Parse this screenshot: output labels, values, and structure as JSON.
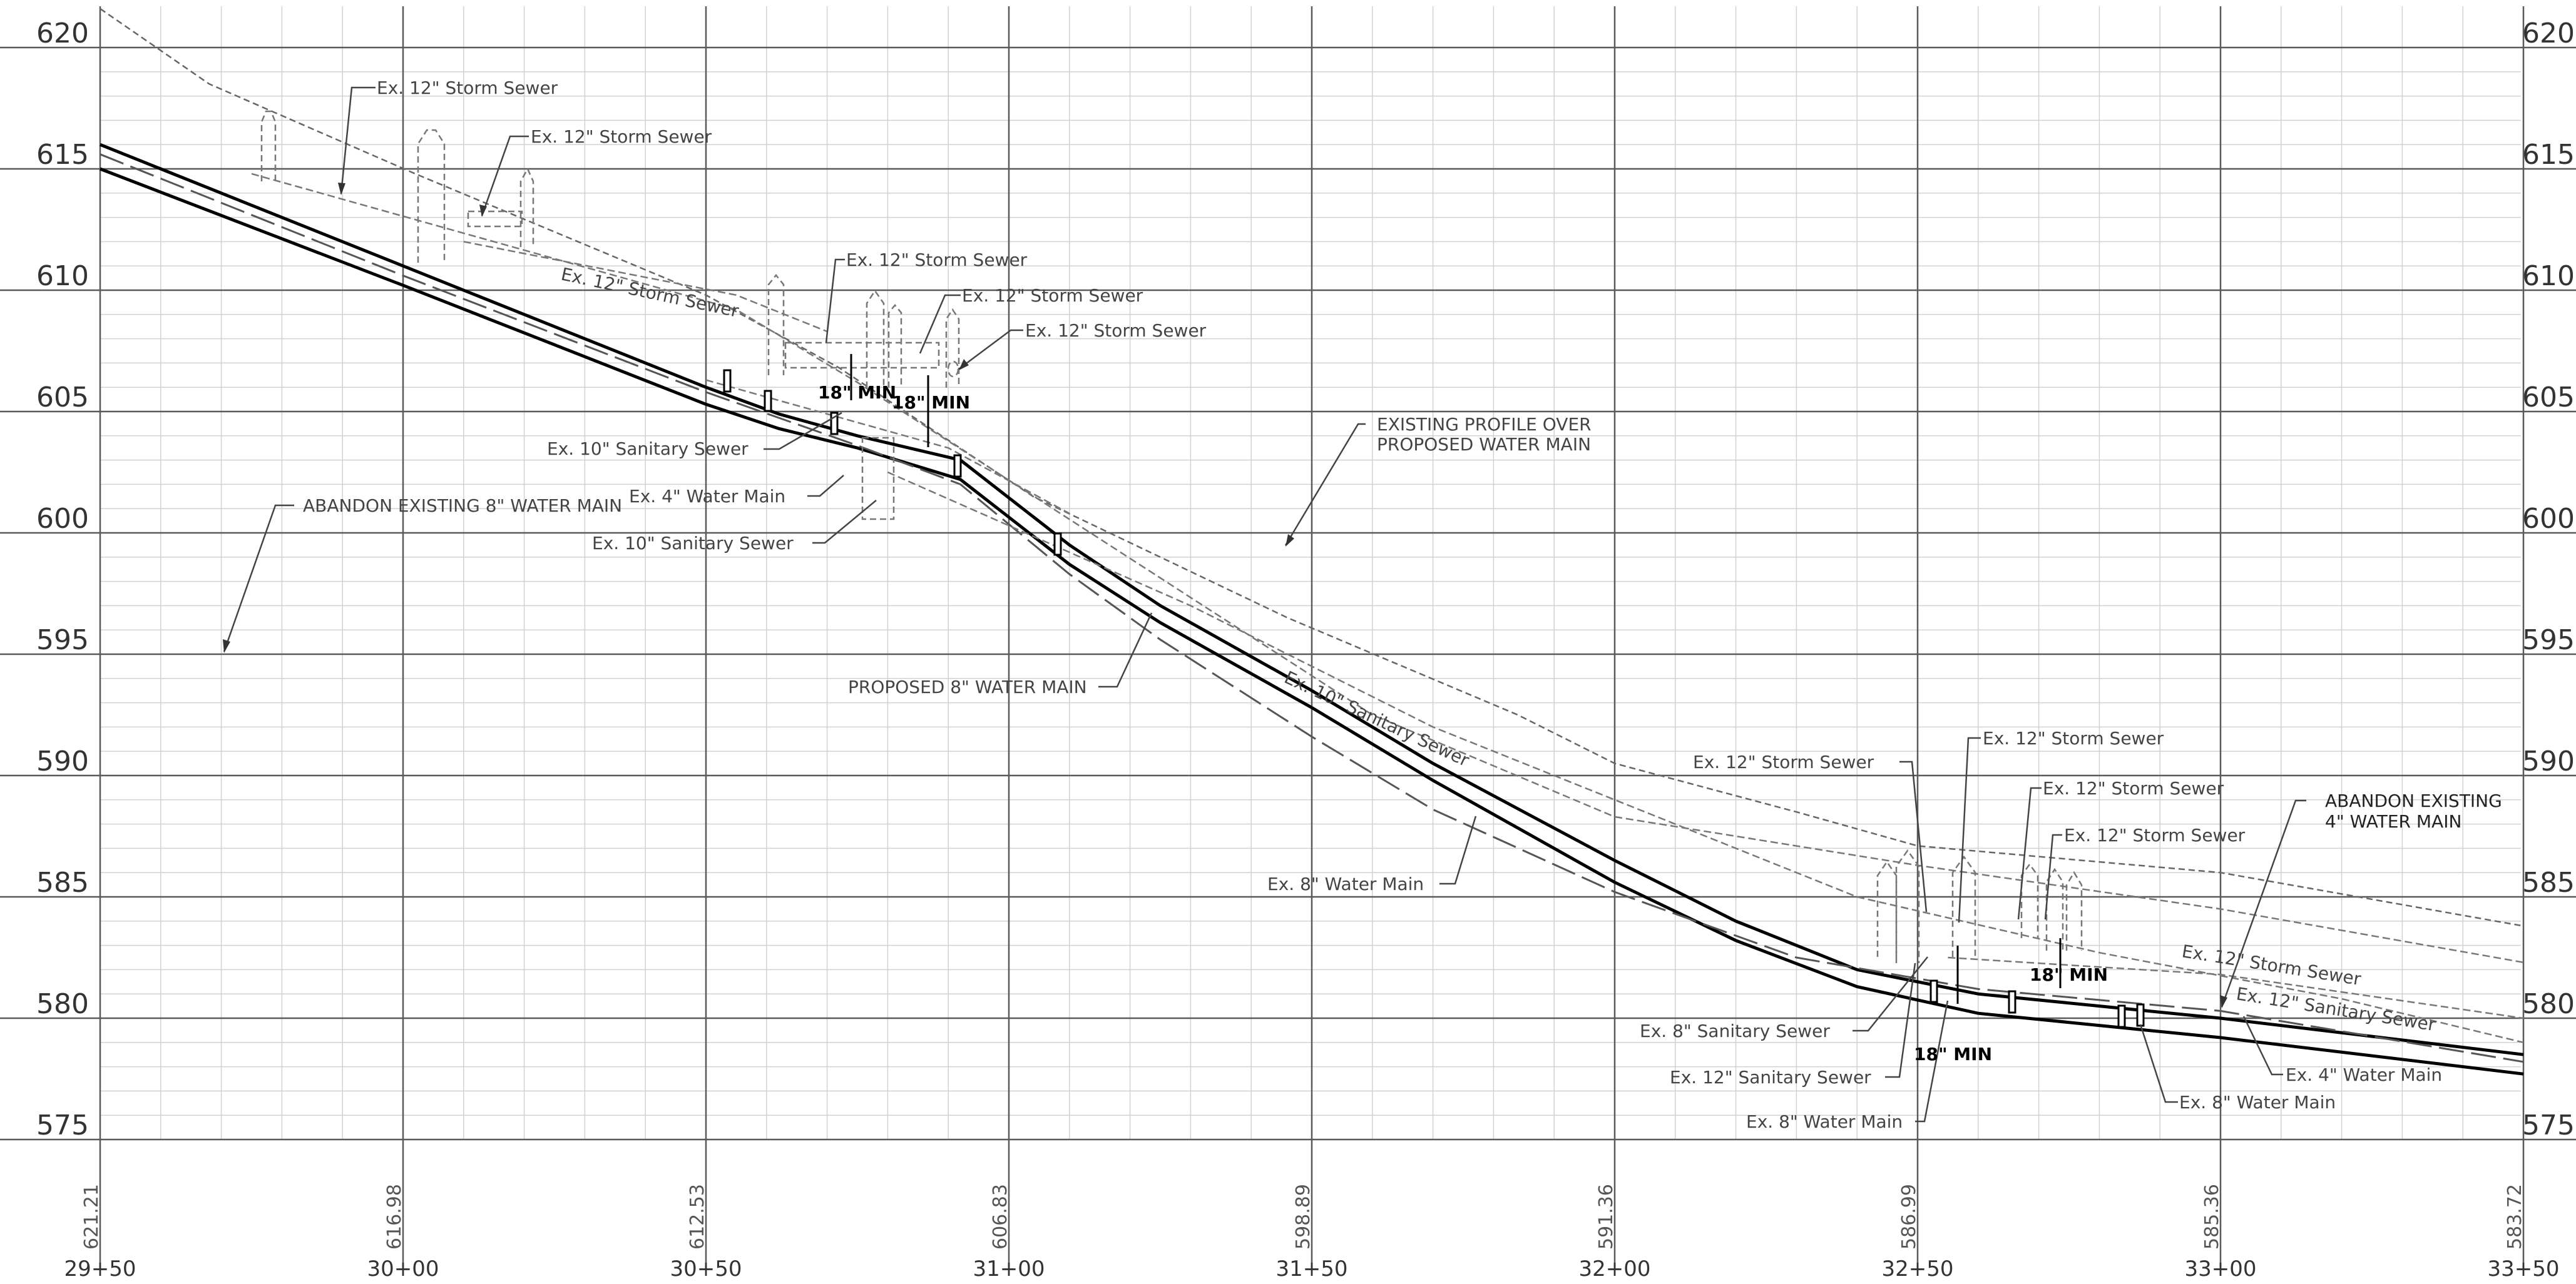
{
  "profile": {
    "elevations": [
      "620",
      "615",
      "610",
      "605",
      "600",
      "595",
      "590",
      "585",
      "580",
      "575"
    ],
    "stations": [
      "29+50",
      "30+00",
      "30+50",
      "31+00",
      "31+50",
      "32+00",
      "32+50",
      "33+00",
      "33+50"
    ],
    "grade_values": [
      "621.21",
      "616.98",
      "612.53",
      "606.83",
      "598.89",
      "591.36",
      "586.99",
      "585.36",
      "583.72"
    ]
  },
  "lines": {
    "existing_ground": [
      [
        29.5,
        621.6
      ],
      [
        29.68,
        618.5
      ],
      [
        30.02,
        614.8
      ],
      [
        30.5,
        609.8
      ],
      [
        30.72,
        606.8
      ],
      [
        31.04,
        601.5
      ],
      [
        31.46,
        596.5
      ],
      [
        31.84,
        592.5
      ],
      [
        32.0,
        590.5
      ],
      [
        32.3,
        588.5
      ],
      [
        32.5,
        587.1
      ],
      [
        33.0,
        586.0
      ],
      [
        33.5,
        583.8
      ]
    ],
    "proposed_main_top": [
      [
        29.5,
        616.0
      ],
      [
        30.0,
        611.0
      ],
      [
        30.5,
        606.0
      ],
      [
        30.62,
        604.9
      ],
      [
        30.75,
        604.0
      ],
      [
        30.92,
        603.0
      ],
      [
        31.1,
        599.5
      ],
      [
        31.25,
        597.0
      ],
      [
        31.5,
        593.5
      ],
      [
        31.7,
        590.5
      ],
      [
        32.0,
        586.5
      ],
      [
        32.2,
        584.0
      ],
      [
        32.4,
        582.0
      ],
      [
        32.6,
        581.0
      ],
      [
        33.0,
        580.0
      ],
      [
        33.5,
        578.5
      ]
    ],
    "proposed_main_bottom": [
      [
        29.5,
        615.0
      ],
      [
        30.0,
        610.2
      ],
      [
        30.5,
        605.3
      ],
      [
        30.62,
        604.3
      ],
      [
        30.75,
        603.5
      ],
      [
        30.92,
        602.2
      ],
      [
        31.1,
        598.7
      ],
      [
        31.25,
        596.3
      ],
      [
        31.5,
        592.8
      ],
      [
        31.7,
        589.8
      ],
      [
        32.0,
        585.6
      ],
      [
        32.2,
        583.2
      ],
      [
        32.4,
        581.3
      ],
      [
        32.6,
        580.2
      ],
      [
        33.0,
        579.2
      ],
      [
        33.5,
        577.7
      ]
    ],
    "existing_8_water_main": [
      [
        29.5,
        615.6
      ],
      [
        30.0,
        610.6
      ],
      [
        30.5,
        605.8
      ],
      [
        30.75,
        603.6
      ],
      [
        30.92,
        602.0
      ],
      [
        31.1,
        598.3
      ],
      [
        31.25,
        595.6
      ],
      [
        31.5,
        591.6
      ],
      [
        31.7,
        588.6
      ],
      [
        32.0,
        585.2
      ],
      [
        32.3,
        582.5
      ],
      [
        32.6,
        581.2
      ],
      [
        33.0,
        580.3
      ],
      [
        33.5,
        578.2
      ]
    ],
    "storm_sewer_a": [
      [
        29.75,
        614.8
      ],
      [
        30.55,
        609.2
      ],
      [
        30.75,
        606.2
      ],
      [
        31.6,
        592.5
      ],
      [
        32.0,
        588.3
      ],
      [
        32.5,
        586.3
      ],
      [
        33.0,
        584.5
      ],
      [
        33.5,
        582.3
      ]
    ],
    "storm_sewer_b": [
      [
        30.1,
        612.0
      ],
      [
        30.55,
        609.8
      ],
      [
        30.7,
        608.3
      ]
    ],
    "sanitary_sewer": [
      [
        30.8,
        602.5
      ],
      [
        31.3,
        597.0
      ],
      [
        31.7,
        592.0
      ],
      [
        32.4,
        585.0
      ],
      [
        32.8,
        582.7
      ],
      [
        33.2,
        580.8
      ],
      [
        33.5,
        579.0
      ]
    ],
    "four_inch_main": [
      [
        30.5,
        606.3
      ],
      [
        30.9,
        603.5
      ],
      [
        31.1,
        600.8
      ]
    ],
    "storm_sewer_c": [
      [
        32.55,
        582.5
      ],
      [
        33.0,
        581.8
      ],
      [
        33.5,
        580.0
      ]
    ]
  },
  "labels": {
    "storm_1": "Ex. 12\" Storm Sewer",
    "storm_2": "Ex. 12\" Storm Sewer",
    "storm_3": "Ex. 12\" Storm Sewer",
    "storm_4": "Ex. 12\" Storm Sewer",
    "storm_5": "Ex. 12\" Storm Sewer",
    "storm_diag": "Ex. 12\" Storm Sewer",
    "san_10_a": "Ex. 10\" Sanitary Sewer",
    "wm_4_a": "Ex. 4\" Water Main",
    "san_10_b": "Ex. 10\" Sanitary Sewer",
    "abandon_8": "ABANDON EXISTING 8\" WATER MAIN",
    "min_1": "18\" MIN",
    "min_2": "18\" MIN",
    "existing_profile_1": "EXISTING PROFILE OVER",
    "existing_profile_2": "PROPOSED WATER MAIN",
    "proposed_main": "PROPOSED 8\" WATER MAIN",
    "san_10_diag": "Ex. 10\" Sanitary Sewer",
    "wm_8_mid": "Ex. 8\" Water Main",
    "storm_r1": "Ex. 12\" Storm Sewer",
    "storm_r2": "Ex. 12\" Storm Sewer",
    "storm_r3": "Ex. 12\" Storm Sewer",
    "storm_r4": "Ex. 12\" Storm Sewer",
    "abandon_4_1": "ABANDON EXISTING",
    "abandon_4_2": "4\" WATER MAIN",
    "storm_r_diag": "Ex. 12\" Storm Sewer",
    "san_12_diag": "Ex. 12\" Sanitary Sewer",
    "min_3": "18\" MIN",
    "min_4": "18\" MIN",
    "san_8_r": "Ex. 8\" Sanitary Sewer",
    "san_12_r": "Ex. 12\" Sanitary Sewer",
    "wm_8_r1": "Ex. 8\" Water Main",
    "wm_8_r2": "Ex. 8\" Water Main",
    "wm_4_r": "Ex. 4\" Water Main"
  }
}
